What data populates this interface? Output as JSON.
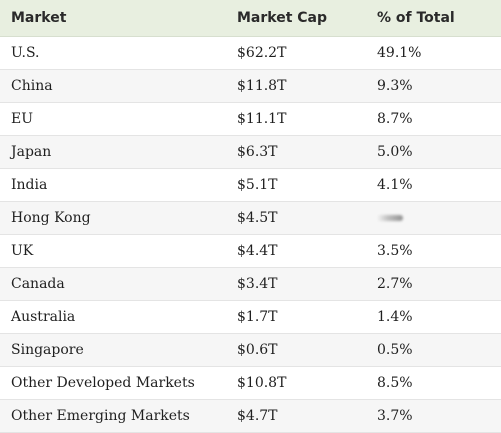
{
  "table": {
    "headers": [
      "Market",
      "Market Cap",
      "% of Total"
    ],
    "rows": [
      {
        "market": "U.S.",
        "cap": "$62.2T",
        "pct": "49.1%"
      },
      {
        "market": "China",
        "cap": "$11.8T",
        "pct": "9.3%"
      },
      {
        "market": "EU",
        "cap": "$11.1T",
        "pct": "8.7%"
      },
      {
        "market": "Japan",
        "cap": "$6.3T",
        "pct": "5.0%"
      },
      {
        "market": "India",
        "cap": "$5.1T",
        "pct": "4.1%"
      },
      {
        "market": "Hong Kong",
        "cap": "$4.5T",
        "pct": ""
      },
      {
        "market": "UK",
        "cap": "$4.4T",
        "pct": "3.5%"
      },
      {
        "market": "Canada",
        "cap": "$3.4T",
        "pct": "2.7%"
      },
      {
        "market": "Australia",
        "cap": "$1.7T",
        "pct": "1.4%"
      },
      {
        "market": "Singapore",
        "cap": "$0.6T",
        "pct": "0.5%"
      },
      {
        "market": "Other Developed Markets",
        "cap": "$10.8T",
        "pct": "8.5%"
      },
      {
        "market": "Other Emerging Markets",
        "cap": "$4.7T",
        "pct": "3.7%"
      }
    ]
  }
}
